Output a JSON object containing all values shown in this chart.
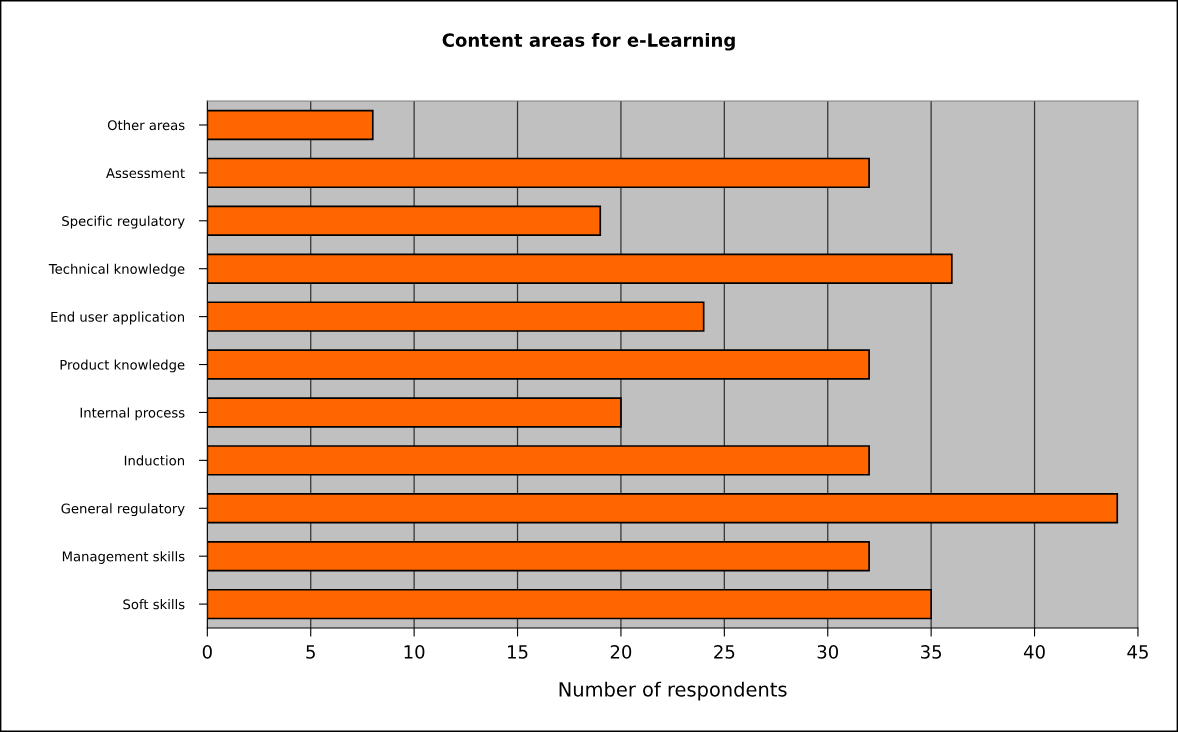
{
  "chart_data": {
    "type": "bar",
    "orientation": "horizontal",
    "title": "Content areas for e-Learning",
    "xlabel": "Number of respondents",
    "categories": [
      "Other areas",
      "Assessment",
      "Specific regulatory",
      "Technical knowledge",
      "End user application",
      "Product knowledge",
      "Internal process",
      "Induction",
      "General regulatory",
      "Management skills",
      "Soft skills"
    ],
    "values": [
      8,
      32,
      19,
      36,
      24,
      32,
      20,
      32,
      44,
      32,
      35
    ],
    "color": "#ff6600",
    "xlim": [
      0,
      45
    ],
    "xticks": [
      0,
      5,
      10,
      15,
      20,
      25,
      30,
      35,
      40,
      45
    ],
    "grid": "x",
    "legend": false
  }
}
